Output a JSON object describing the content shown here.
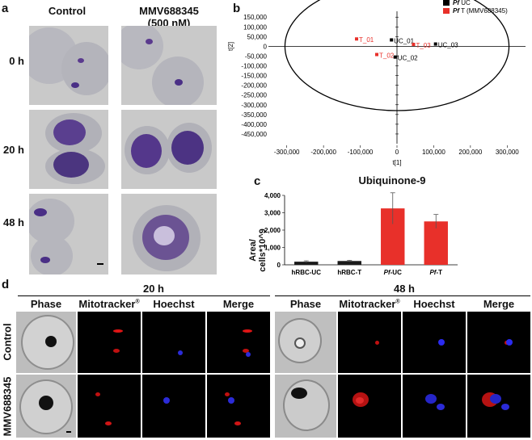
{
  "panel_a": {
    "letter": "a",
    "col_headers": [
      "Control",
      "MMV688345\n(500 nM)"
    ],
    "row_labels": [
      "0 h",
      "20 h",
      "48 h"
    ]
  },
  "panel_b": {
    "letter": "b",
    "legend": [
      {
        "label_italic": "Pf",
        "label_rest": " UC",
        "color": "#000000"
      },
      {
        "label_italic": "Pf",
        "label_rest": " T (MMV688345)",
        "color": "#e8302a"
      }
    ],
    "xlabel": "t[1]",
    "ylabel": "t[2]"
  },
  "panel_c": {
    "letter": "c",
    "title": "Ubiquinone-9",
    "ylabel_line1": "Area/",
    "ylabel_line2": "cells*10^9"
  },
  "panel_d": {
    "letter": "d",
    "time_labels": [
      "20 h",
      "48 h"
    ],
    "channel_headers": [
      "Phase",
      "Mitotracker",
      "Hoechst",
      "Merge"
    ],
    "registered_mark": "®",
    "row_labels": [
      "Control",
      "MMV688345"
    ]
  },
  "chart_data": [
    {
      "type": "scatter",
      "title": "",
      "xlabel": "t[1]",
      "ylabel": "t[2]",
      "xlim": [
        -350000,
        350000
      ],
      "ylim": [
        -500000,
        180000
      ],
      "x_ticks": [
        -300000,
        -200000,
        -100000,
        0,
        100000,
        200000,
        300000
      ],
      "x_tick_labels": [
        "-300,000",
        "-200,000",
        "-100,000",
        "0",
        "100,000",
        "200,000",
        "300,000"
      ],
      "y_ticks": [
        150000,
        100000,
        50000,
        0,
        -50000,
        -100000,
        -150000,
        -200000,
        -250000,
        -300000,
        -350000,
        -400000,
        -450000
      ],
      "y_tick_labels": [
        "150,000",
        "100,000",
        "50,000",
        "0",
        "-50,000",
        "-100,000",
        "-150,000",
        "-200,000",
        "-250,000",
        "-300,000",
        "-350,000",
        "-400,000",
        "-450,000"
      ],
      "ellipse": {
        "rx": 305000,
        "ry": 330000,
        "cx": 0,
        "cy": 0
      },
      "series": [
        {
          "name": "Pf UC",
          "color": "#000000",
          "points": [
            {
              "label": "UC_01",
              "x": -15000,
              "y": 33000
            },
            {
              "label": "UC_03",
              "x": 105000,
              "y": 12000
            },
            {
              "label": "UC_02",
              "x": -5000,
              "y": -55000
            }
          ]
        },
        {
          "name": "Pf T (MMV688345)",
          "color": "#e8302a",
          "points": [
            {
              "label": "T_01",
              "x": -110000,
              "y": 38000
            },
            {
              "label": "T_03",
              "x": 45000,
              "y": 10000
            },
            {
              "label": "T_02",
              "x": -55000,
              "y": -42000
            }
          ]
        }
      ],
      "legend_position": "top-right",
      "grid": false
    },
    {
      "type": "bar",
      "title": "Ubiquinone-9",
      "ylabel": "Area/cells*10^9",
      "categories": [
        "hRBC-UC",
        "hRBC-T",
        "Pf-UC",
        "Pf-T"
      ],
      "category_italic_prefix": [
        "",
        "",
        "Pf",
        "Pf"
      ],
      "category_rest": [
        "hRBC-UC",
        "hRBC-T",
        "-UC",
        "-T"
      ],
      "values": [
        180,
        220,
        3250,
        2500
      ],
      "errors": [
        50,
        40,
        900,
        400
      ],
      "colors": [
        "#1a1a1a",
        "#1a1a1a",
        "#e8302a",
        "#e8302a"
      ],
      "ylim": [
        0,
        4000
      ],
      "y_ticks": [
        0,
        1000,
        2000,
        3000,
        4000
      ],
      "y_tick_labels": [
        "0",
        "1,000",
        "2,000",
        "3,000",
        "4,000"
      ]
    }
  ]
}
